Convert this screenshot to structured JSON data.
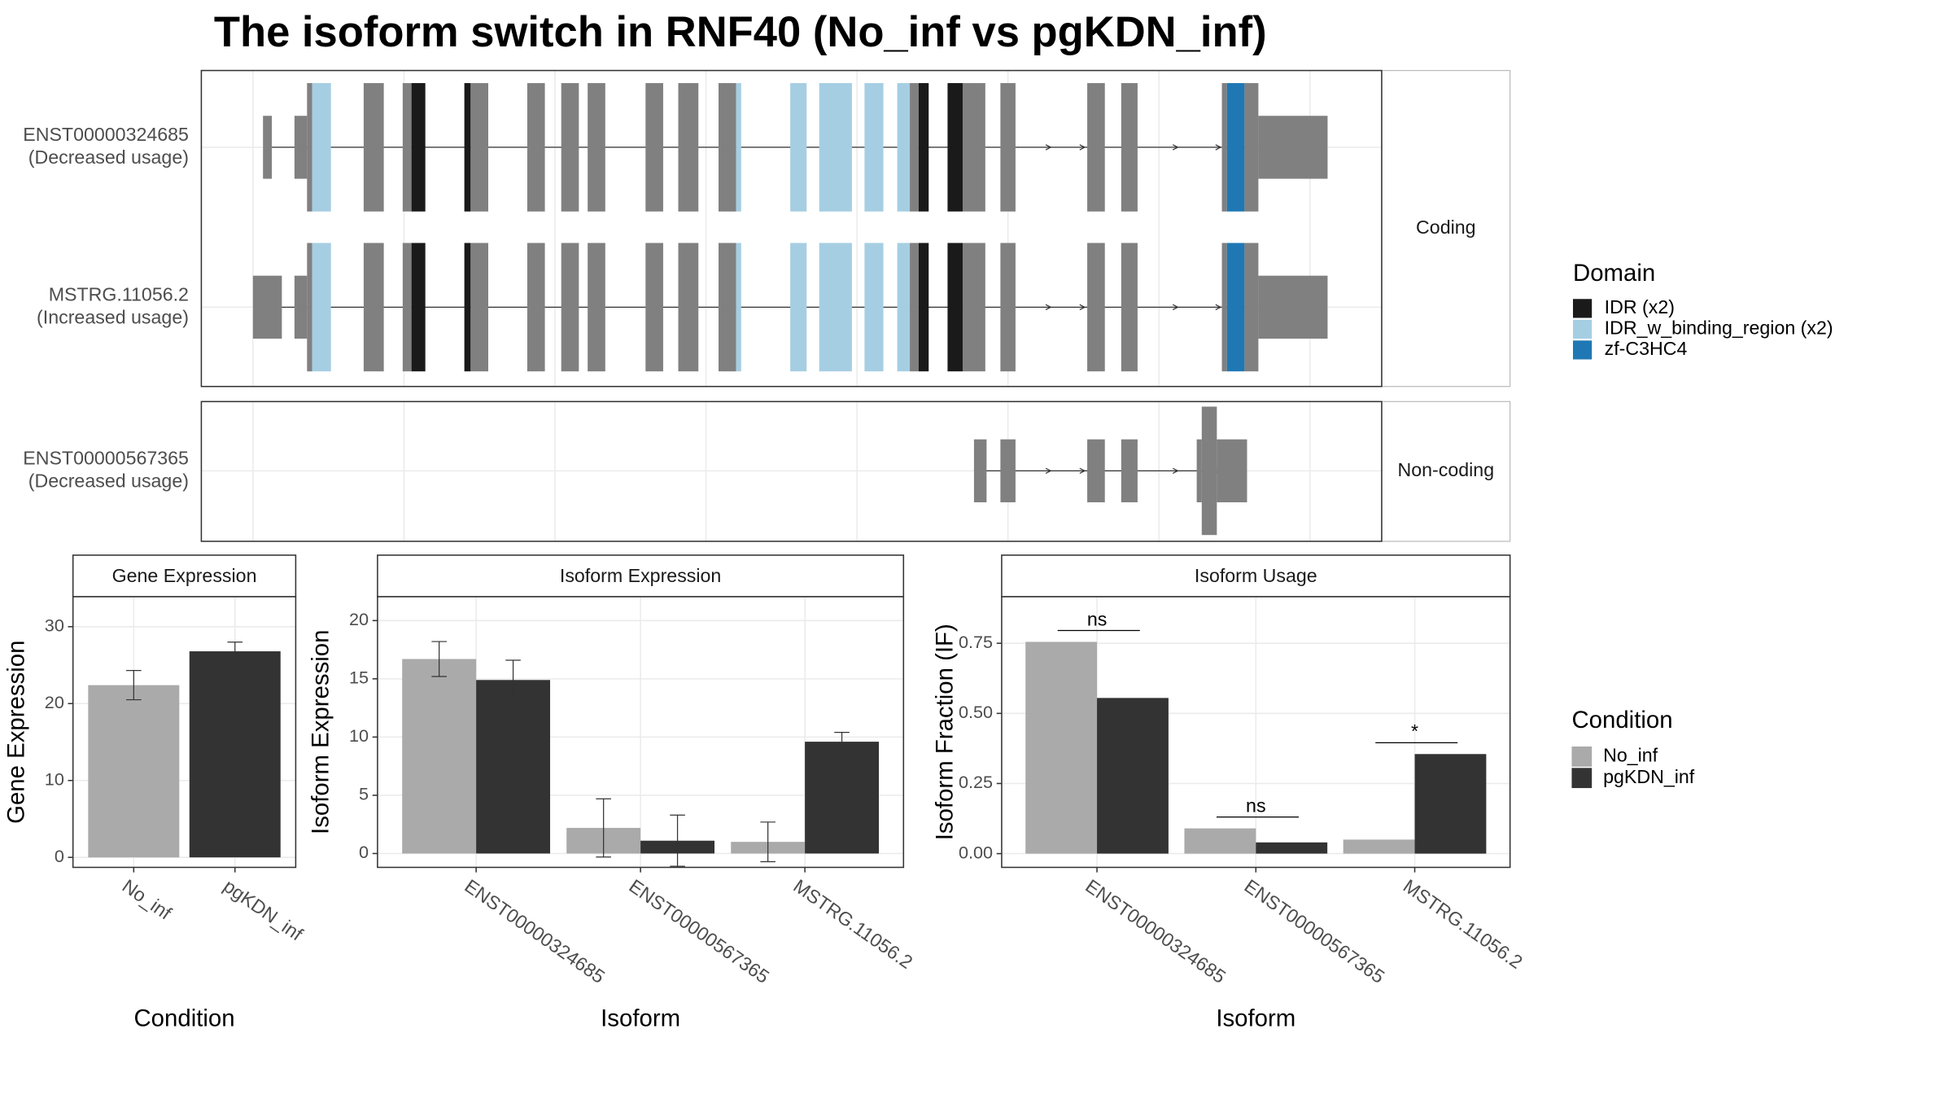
{
  "title": "The isoform switch in RNF40 (No_inf vs pgKDN_inf)",
  "transcript_plot": {
    "transcripts": [
      {
        "name": "ENST00000324685",
        "usage": "(Decreased usage)"
      },
      {
        "name": "MSTRG.11056.2",
        "usage": "(Increased usage)"
      },
      {
        "name": "ENST00000567365",
        "usage": "(Decreased usage)"
      }
    ],
    "facets": [
      "Coding",
      "Non-coding"
    ],
    "legend": {
      "title": "Domain",
      "items": [
        {
          "name": "IDR (x2)",
          "color": "#1a1a1a"
        },
        {
          "name": "IDR_w_binding_region (x2)",
          "color": "#a6cee3"
        },
        {
          "name": "zf-C3HC4",
          "color": "#1f78b4"
        }
      ]
    }
  },
  "condition_legend": {
    "title": "Condition"
  },
  "chart_data": [
    {
      "type": "bar",
      "title": "Gene Expression",
      "xlabel": "Condition",
      "ylabel": "Gene Expression",
      "categories": [
        "No_inf",
        "pgKDN_inf"
      ],
      "values": [
        22.4,
        26.8
      ],
      "errors": [
        1.9,
        1.2
      ],
      "colors": [
        "#aaaaaa",
        "#333333"
      ],
      "ylim": [
        -1.3,
        33.9
      ],
      "yticks": [
        0,
        10,
        20,
        30
      ],
      "grid": true
    },
    {
      "type": "grouped_bar",
      "title": "Isoform Expression",
      "xlabel": "Isoform",
      "ylabel": "Isoform Expression",
      "categories": [
        "ENST00000324685",
        "ENST00000567365",
        "MSTRG.11056.2"
      ],
      "series": [
        {
          "name": "No_inf",
          "color": "#aaaaaa",
          "values": [
            16.7,
            2.2,
            1.0
          ],
          "errors": [
            1.5,
            2.5,
            1.7
          ]
        },
        {
          "name": "pgKDN_inf",
          "color": "#333333",
          "values": [
            14.9,
            1.1,
            9.6
          ],
          "errors": [
            1.7,
            2.2,
            0.8
          ]
        }
      ],
      "ylim": [
        -1.19,
        22.05
      ],
      "yticks": [
        0,
        5,
        10,
        15,
        20
      ],
      "grid": true
    },
    {
      "type": "grouped_bar",
      "title": "Isoform Usage",
      "xlabel": "Isoform",
      "ylabel": "Isoform Fraction (IF)",
      "categories": [
        "ENST00000324685",
        "ENST00000567365",
        "MSTRG.11056.2"
      ],
      "series": [
        {
          "name": "No_inf",
          "color": "#aaaaaa",
          "values": [
            0.755,
            0.09,
            0.05
          ]
        },
        {
          "name": "pgKDN_inf",
          "color": "#333333",
          "values": [
            0.555,
            0.04,
            0.355
          ]
        }
      ],
      "annotations": [
        "ns",
        "ns",
        "*"
      ],
      "ylim": [
        -0.049,
        0.916
      ],
      "yticks": [
        {
          "value": 0,
          "label": "0.00"
        },
        {
          "value": 0.25,
          "label": "0.25"
        },
        {
          "value": 0.5,
          "label": "0.50"
        },
        {
          "value": 0.75,
          "label": "0.75"
        }
      ],
      "grid": true
    }
  ]
}
